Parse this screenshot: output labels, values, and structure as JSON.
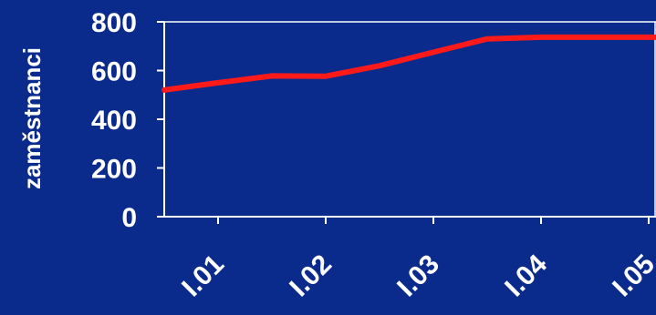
{
  "chart_data": {
    "type": "line",
    "title": "",
    "xlabel": "",
    "ylabel": "zaměstnanci",
    "ylim": [
      0,
      800
    ],
    "yticks": [
      "0",
      "200",
      "400",
      "600",
      "800"
    ],
    "x": [
      1,
      2,
      3,
      4,
      5,
      6,
      7,
      8,
      9,
      10,
      11
    ],
    "xticks": [
      "I.01",
      "I.02",
      "I.03",
      "I.04",
      "I.05"
    ],
    "series": [
      {
        "values": [
          520,
          550,
          578,
          577,
          620,
          675,
          730,
          737,
          737,
          737,
          737
        ]
      }
    ],
    "grid": false,
    "colors": {
      "background": "#0a2b8c",
      "line": "#ff1a1a",
      "axis": "#ffffff",
      "text": "#ffffff"
    }
  }
}
